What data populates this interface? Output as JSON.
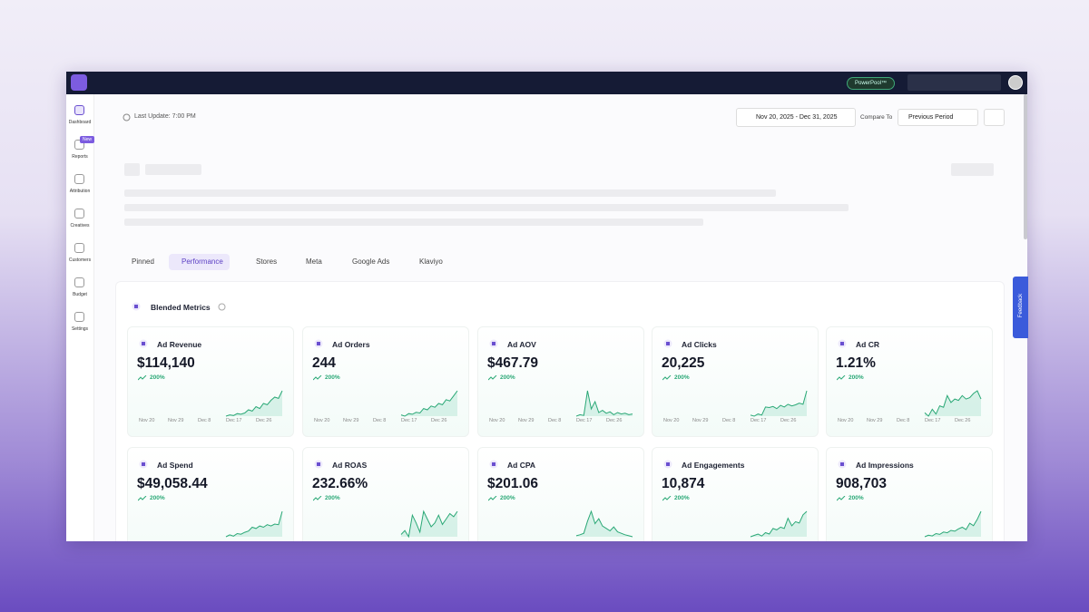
{
  "top_bar": {
    "badge": "PowerPool™"
  },
  "sidebar": {
    "items": [
      "Dashboard",
      "Reports",
      "Attribution",
      "Creatives",
      "Customers",
      "Budget",
      "Settings"
    ],
    "new_badge": "New"
  },
  "header": {
    "last_update": "Last Update: 7:00 PM",
    "date_range": "Nov 20, 2025 - Dec 31, 2025",
    "compare_label": "Compare To",
    "compare_value": "Previous Period"
  },
  "tabs": [
    "Pinned",
    "Performance",
    "Stores",
    "Meta",
    "Google Ads",
    "Klaviyo"
  ],
  "section": {
    "title": "Blended Metrics",
    "x_labels": [
      "Nov 20",
      "Nov 29",
      "Dec 8",
      "Dec 17",
      "Dec 26"
    ],
    "cards": [
      {
        "title": "Ad Revenue",
        "value": "$114,140",
        "change": "200%",
        "trend": [
          10,
          12,
          11,
          14,
          13,
          15,
          20,
          18,
          25,
          22,
          30,
          28,
          35,
          40,
          38,
          50
        ]
      },
      {
        "title": "Ad Orders",
        "value": "244",
        "change": "200%",
        "trend": [
          12,
          10,
          14,
          13,
          16,
          15,
          22,
          20,
          26,
          24,
          30,
          28,
          36,
          34,
          42,
          50
        ]
      },
      {
        "title": "Ad AOV",
        "value": "$467.79",
        "change": "200%",
        "trend": [
          10,
          12,
          11,
          45,
          20,
          30,
          15,
          18,
          14,
          16,
          12,
          15,
          13,
          14,
          12,
          13
        ]
      },
      {
        "title": "Ad Clicks",
        "value": "20,225",
        "change": "200%",
        "trend": [
          10,
          8,
          12,
          10,
          25,
          24,
          26,
          22,
          28,
          25,
          30,
          27,
          29,
          32,
          30,
          55
        ]
      },
      {
        "title": "Ad CR",
        "value": "1.21%",
        "change": "200%",
        "trend": [
          20,
          15,
          25,
          18,
          30,
          28,
          45,
          35,
          40,
          38,
          45,
          40,
          42,
          48,
          52,
          40
        ]
      },
      {
        "title": "Ad Spend",
        "value": "$49,058.44",
        "change": "200%",
        "trend": [
          5,
          8,
          6,
          10,
          9,
          12,
          14,
          20,
          18,
          22,
          20,
          24,
          22,
          25,
          24,
          45
        ]
      },
      {
        "title": "Ad ROAS",
        "value": "232.66%",
        "change": "200%",
        "trend": [
          15,
          20,
          12,
          40,
          30,
          18,
          45,
          35,
          25,
          30,
          40,
          28,
          35,
          42,
          38,
          45
        ]
      },
      {
        "title": "Ad CPA",
        "value": "$201.06",
        "change": "200%",
        "trend": [
          10,
          12,
          15,
          40,
          60,
          35,
          45,
          30,
          25,
          20,
          28,
          18,
          15,
          12,
          10,
          8
        ]
      },
      {
        "title": "Ad Engagements",
        "value": "10,874",
        "change": "200%",
        "trend": [
          8,
          10,
          12,
          9,
          14,
          12,
          20,
          18,
          22,
          20,
          35,
          24,
          30,
          28,
          40,
          45
        ]
      },
      {
        "title": "Ad Impressions",
        "value": "908,703",
        "change": "200%",
        "trend": [
          8,
          10,
          9,
          12,
          11,
          14,
          13,
          16,
          15,
          18,
          20,
          17,
          25,
          22,
          30,
          40
        ]
      }
    ]
  },
  "feedback": "Feedback"
}
